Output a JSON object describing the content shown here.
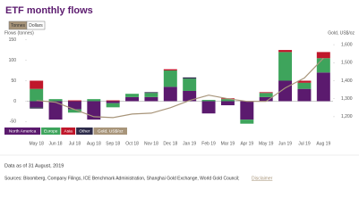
{
  "chart_data": {
    "type": "stacked_bar",
    "title": "ETF monthly flows",
    "buttons": [
      "Tonnes",
      "Dollars"
    ],
    "y_label": "Flows (tonnes)",
    "y2_label": "Gold, US$/oz",
    "categories": [
      "May 18",
      "Jun 18",
      "Jul 18",
      "Aug 18",
      "Sep 18",
      "Oct 18",
      "Nov 18",
      "Dec 18",
      "Jan 19",
      "Feb 19",
      "Mar 19",
      "Apr 19",
      "May 19",
      "Jun 19",
      "Jul 19",
      "Aug 19"
    ],
    "series": [
      {
        "name": "North America",
        "color": "#5b1a6e",
        "values": [
          -15,
          -45,
          -20,
          -45,
          -5,
          10,
          10,
          35,
          25,
          -30,
          -10,
          -45,
          10,
          50,
          30,
          70
        ]
      },
      {
        "name": "Europe",
        "color": "#3ea45c",
        "values": [
          30,
          5,
          -8,
          5,
          -10,
          8,
          10,
          40,
          30,
          3,
          5,
          -10,
          10,
          70,
          15,
          35
        ]
      },
      {
        "name": "Asia",
        "color": "#c0172b",
        "values": [
          20,
          0,
          2,
          0,
          2,
          0,
          0,
          3,
          0,
          0,
          2,
          0,
          2,
          5,
          5,
          15
        ]
      },
      {
        "name": "Other",
        "color": "#2d2b4a",
        "values": [
          -3,
          0,
          0,
          0,
          0,
          0,
          2,
          0,
          3,
          0,
          0,
          0,
          0,
          0,
          0,
          0
        ]
      },
      {
        "name": "Gold, US$/oz",
        "color": "#a8957a",
        "type": "line",
        "axis": "y2",
        "values": [
          1290,
          1280,
          1240,
          1200,
          1195,
          1215,
          1220,
          1250,
          1290,
          1320,
          1300,
          1285,
          1285,
          1360,
          1415,
          1525
        ]
      }
    ],
    "ylim": [
      -60,
      160
    ],
    "yticks": [
      -50,
      0,
      50,
      100,
      150
    ],
    "y2lim": [
      1150,
      1650
    ],
    "y2ticks": [
      {
        "value": 1200,
        "label": "1,200"
      },
      {
        "value": 1300,
        "label": "1,300"
      },
      {
        "value": 1400,
        "label": "1,400"
      },
      {
        "value": 1500,
        "label": "1,500"
      },
      {
        "value": 1600,
        "label": "1,600"
      }
    ],
    "grid": false,
    "note": "Data as of 31 August, 2019",
    "sources": "Sources: Bloomberg, Company Filings, ICE Benchmark Administration, Shanghai Gold Exchange, World Gold Council;",
    "disclaimer": "Disclaimer"
  }
}
